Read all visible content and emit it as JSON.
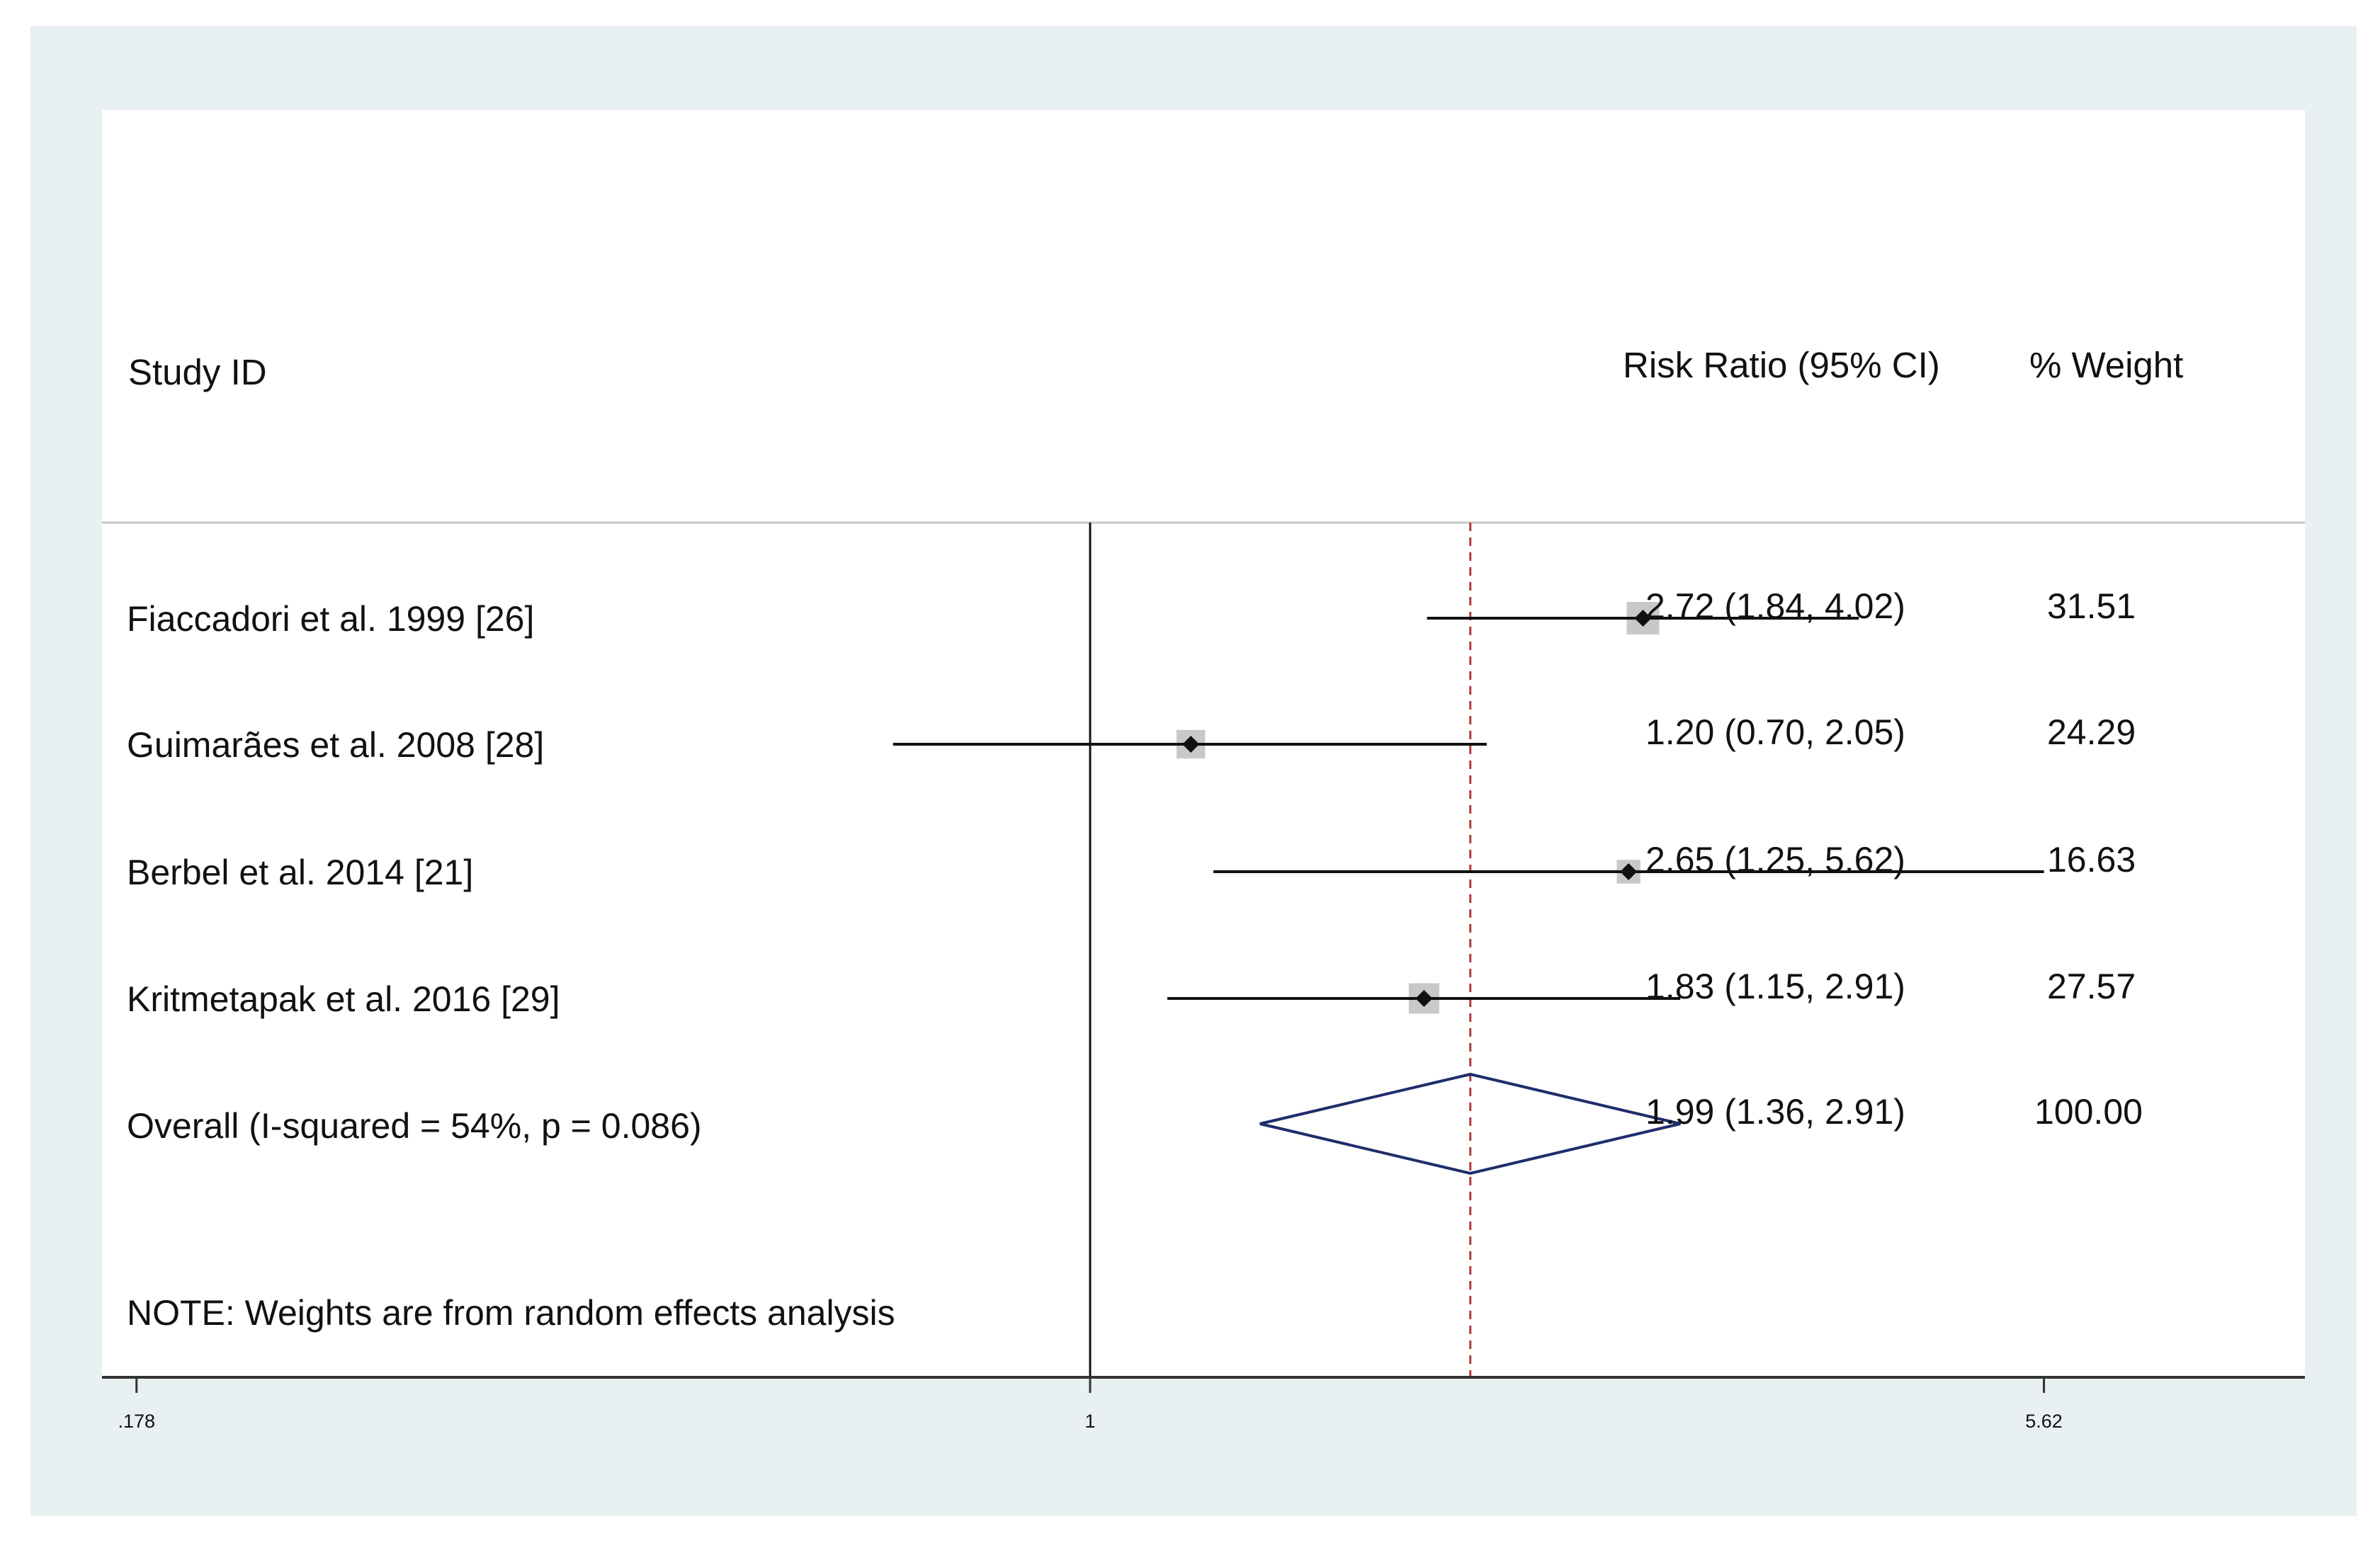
{
  "chart_data": {
    "type": "forest",
    "xscale": "log",
    "headers": {
      "study": "Study ID",
      "effect": "Risk Ratio (95% CI)",
      "weight": "% Weight"
    },
    "studies": [
      {
        "label": "Fiaccadori et al. 1999 [26]",
        "rr": 2.72,
        "lower": 1.84,
        "upper": 4.02,
        "ci_text": "2.72 (1.84, 4.02)",
        "weight": 31.51,
        "weight_text": "31.51"
      },
      {
        "label": "Guimarães et al. 2008 [28]",
        "rr": 1.2,
        "lower": 0.7,
        "upper": 2.05,
        "ci_text": "1.20 (0.70, 2.05)",
        "weight": 24.29,
        "weight_text": "24.29"
      },
      {
        "label": "Berbel et al. 2014 [21]",
        "rr": 2.65,
        "lower": 1.25,
        "upper": 5.62,
        "ci_text": "2.65 (1.25, 5.62)",
        "weight": 16.63,
        "weight_text": "16.63"
      },
      {
        "label": "Kritmetapak et al. 2016 [29]",
        "rr": 1.83,
        "lower": 1.15,
        "upper": 2.91,
        "ci_text": "1.83 (1.15, 2.91)",
        "weight": 27.57,
        "weight_text": "27.57"
      }
    ],
    "overall": {
      "label": "Overall (I-squared = 54%, p = 0.086)",
      "rr": 1.99,
      "lower": 1.36,
      "upper": 2.91,
      "ci_text": "1.99 (1.36, 2.91)",
      "weight_text": "100.00"
    },
    "note": "NOTE: Weights are from random effects analysis",
    "x_ticks": [
      {
        "value": 0.178,
        "label": ".178"
      },
      {
        "value": 1,
        "label": "1"
      },
      {
        "value": 5.62,
        "label": "5.62"
      }
    ],
    "reference_line": 1,
    "colors": {
      "diamond": "#1f2d6b",
      "overall_line": "#b03a3a",
      "weight_box": "#c8c8c8",
      "ink": "#111111",
      "divider": "#c8c8c8"
    }
  }
}
